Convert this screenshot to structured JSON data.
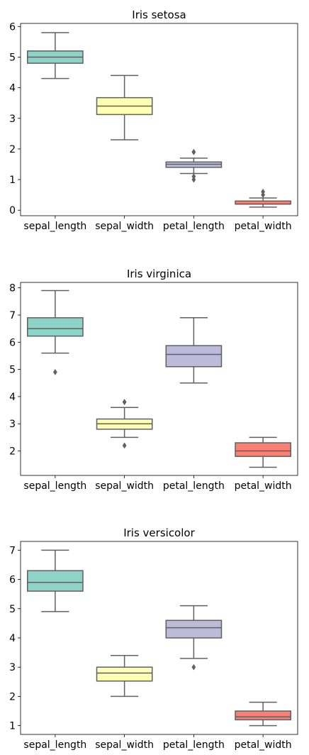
{
  "chart_data": [
    {
      "type": "box",
      "title": "Iris setosa",
      "categories": [
        "sepal_length",
        "sepal_width",
        "petal_length",
        "petal_width"
      ],
      "yticks": [
        0,
        1,
        2,
        3,
        4,
        5,
        6
      ],
      "ylim": [
        -0.18,
        6.1
      ],
      "boxes": [
        {
          "category": "sepal_length",
          "whisker_low": 4.3,
          "q1": 4.8,
          "median": 5.0,
          "q3": 5.2,
          "whisker_high": 5.8,
          "outliers": [],
          "color": "#8dd3c7"
        },
        {
          "category": "sepal_width",
          "whisker_low": 2.3,
          "q1": 3.125,
          "median": 3.4,
          "q3": 3.675,
          "whisker_high": 4.4,
          "outliers": [],
          "color": "#ffffb3"
        },
        {
          "category": "petal_length",
          "whisker_low": 1.2,
          "q1": 1.4,
          "median": 1.5,
          "q3": 1.575,
          "whisker_high": 1.7,
          "outliers": [
            1.9,
            1.9,
            1.0,
            1.1
          ],
          "color": "#bebada"
        },
        {
          "category": "petal_width",
          "whisker_low": 0.1,
          "q1": 0.2,
          "median": 0.2,
          "q3": 0.3,
          "whisker_high": 0.4,
          "outliers": [
            0.5,
            0.6
          ],
          "color": "#fb8072"
        }
      ]
    },
    {
      "type": "box",
      "title": "Iris virginica",
      "categories": [
        "sepal_length",
        "sepal_width",
        "petal_length",
        "petal_width"
      ],
      "yticks": [
        2,
        3,
        4,
        5,
        6,
        7,
        8
      ],
      "ylim": [
        1.1,
        8.2
      ],
      "boxes": [
        {
          "category": "sepal_length",
          "whisker_low": 5.6,
          "q1": 6.225,
          "median": 6.5,
          "q3": 6.9,
          "whisker_high": 7.9,
          "outliers": [
            4.9
          ],
          "color": "#8dd3c7"
        },
        {
          "category": "sepal_width",
          "whisker_low": 2.5,
          "q1": 2.8,
          "median": 3.0,
          "q3": 3.175,
          "whisker_high": 3.6,
          "outliers": [
            3.8,
            3.8,
            2.2
          ],
          "color": "#ffffb3"
        },
        {
          "category": "petal_length",
          "whisker_low": 4.5,
          "q1": 5.1,
          "median": 5.55,
          "q3": 5.875,
          "whisker_high": 6.9,
          "outliers": [],
          "color": "#bebada"
        },
        {
          "category": "petal_width",
          "whisker_low": 1.4,
          "q1": 1.8,
          "median": 2.0,
          "q3": 2.3,
          "whisker_high": 2.5,
          "outliers": [],
          "color": "#fb8072"
        }
      ]
    },
    {
      "type": "box",
      "title": "Iris versicolor",
      "categories": [
        "sepal_length",
        "sepal_width",
        "petal_length",
        "petal_width"
      ],
      "yticks": [
        1,
        2,
        3,
        4,
        5,
        6,
        7
      ],
      "ylim": [
        0.7,
        7.3
      ],
      "boxes": [
        {
          "category": "sepal_length",
          "whisker_low": 4.9,
          "q1": 5.6,
          "median": 5.9,
          "q3": 6.3,
          "whisker_high": 7.0,
          "outliers": [],
          "color": "#8dd3c7"
        },
        {
          "category": "sepal_width",
          "whisker_low": 2.0,
          "q1": 2.525,
          "median": 2.8,
          "q3": 3.0,
          "whisker_high": 3.4,
          "outliers": [],
          "color": "#ffffb3"
        },
        {
          "category": "petal_length",
          "whisker_low": 3.3,
          "q1": 4.0,
          "median": 4.35,
          "q3": 4.6,
          "whisker_high": 5.1,
          "outliers": [
            3.0
          ],
          "color": "#bebada"
        },
        {
          "category": "petal_width",
          "whisker_low": 1.0,
          "q1": 1.2,
          "median": 1.3,
          "q3": 1.5,
          "whisker_high": 1.8,
          "outliers": [],
          "color": "#fb8072"
        }
      ]
    }
  ]
}
